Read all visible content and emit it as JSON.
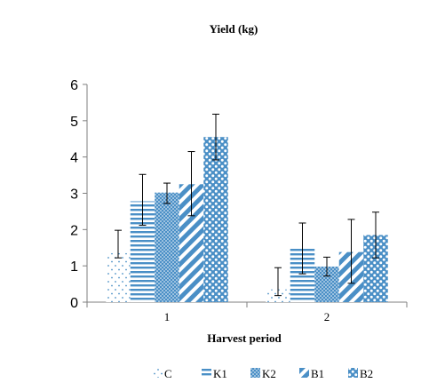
{
  "chart_data": {
    "type": "bar",
    "title": "Yield (kg)",
    "xlabel": "Harvest period",
    "ylabel": "",
    "categories": [
      "1",
      "2"
    ],
    "ylim": [
      0,
      6
    ],
    "yticks": [
      "0",
      "1",
      "2",
      "3",
      "4",
      "5",
      "6"
    ],
    "grid": false,
    "legend_position": "bottom",
    "series": [
      {
        "name": "C",
        "values": [
          1.35,
          0.35
        ],
        "err_low": [
          1.22,
          0.18
        ],
        "err_high": [
          1.98,
          0.95
        ],
        "pattern": "sparse-dots"
      },
      {
        "name": "K1",
        "values": [
          2.78,
          1.48
        ],
        "err_low": [
          2.12,
          0.78
        ],
        "err_high": [
          3.52,
          2.18
        ],
        "pattern": "horizontal-lines"
      },
      {
        "name": "K2",
        "values": [
          3.02,
          0.98
        ],
        "err_low": [
          2.72,
          0.72
        ],
        "err_high": [
          3.28,
          1.24
        ],
        "pattern": "dense-dots"
      },
      {
        "name": "B1",
        "values": [
          3.25,
          1.38
        ],
        "err_low": [
          2.38,
          0.52
        ],
        "err_high": [
          4.15,
          2.28
        ],
        "pattern": "diagonal-stripes"
      },
      {
        "name": "B2",
        "values": [
          4.55,
          1.85
        ],
        "err_low": [
          3.92,
          1.22
        ],
        "err_high": [
          5.18,
          2.48
        ],
        "pattern": "large-dots"
      }
    ],
    "colors": {
      "bar": "#4a8fc6",
      "axis": "#7f7f7f",
      "error_bar": "#000000",
      "text": "#000000"
    }
  }
}
